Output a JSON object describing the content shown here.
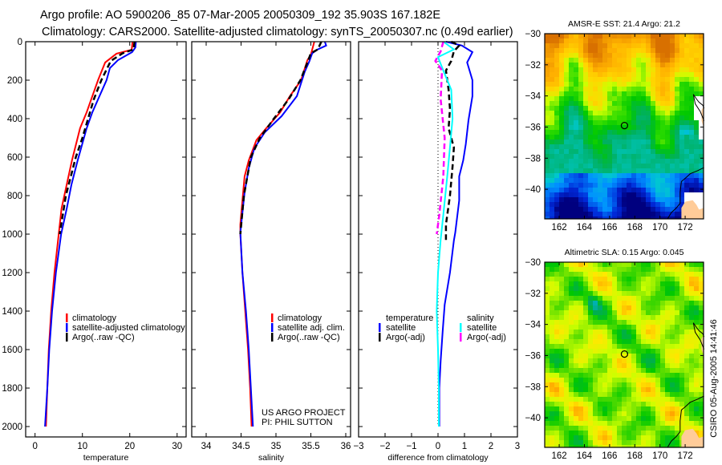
{
  "header": {
    "line1": "Argo profile: AO 5900206_85 07-Mar-2005 20050309_192 35.903S 167.182E",
    "line2": "Climatology: CARS2000. Satellite-adjusted climatology: synTS_20050307.nc (0.49d earlier)"
  },
  "credit": {
    "line1": "US ARGO PROJECT",
    "line2": "PI: PHIL SUTTON"
  },
  "timestamp": "CSIRO 05-Aug-2005 14:41:46",
  "colors": {
    "climatology": "#ff0000",
    "satellite": "#0000ff",
    "argo": "#000000",
    "salinity_satellite": "#00ffff",
    "salinity_argo": "#ff00ff",
    "land": "#ffcc99"
  },
  "chart_data": [
    {
      "type": "line",
      "title": "",
      "xlabel": "temperature",
      "ylabel": "",
      "xlim": [
        -1.98,
        31.9
      ],
      "ylim": [
        0,
        2054
      ],
      "xticks": [
        0,
        10,
        20,
        30
      ],
      "yticks": [
        0,
        200,
        400,
        600,
        800,
        1000,
        1200,
        1400,
        1600,
        1800,
        2000
      ],
      "show_ylabels": true,
      "zero_line": false,
      "legend": [
        {
          "header": null,
          "items": [
            {
              "label": "climatology",
              "color": "#ff0000"
            },
            {
              "label": "satellite-adjusted climatology",
              "color": "#0000ff"
            },
            {
              "label": "Argo(..raw -QC)",
              "color": "#000000"
            }
          ]
        }
      ],
      "series": [
        {
          "name": "climatology",
          "color": "#ff0000",
          "dash": false,
          "depth": [
            0,
            42,
            62,
            108,
            200,
            262,
            367,
            450,
            617,
            742,
            867,
            1000,
            1200,
            1400,
            1600,
            1800,
            2000
          ],
          "values": [
            20.6,
            20.4,
            17.2,
            14.8,
            13.3,
            12.4,
            10.9,
            9.5,
            7.8,
            6.7,
            5.6,
            5.0,
            4.1,
            3.4,
            2.9,
            2.6,
            2.3
          ]
        },
        {
          "name": "satellite-adjusted climatology",
          "color": "#0000ff",
          "dash": false,
          "depth": [
            0,
            30,
            54,
            96,
            137,
            200,
            283,
            367,
            450,
            617,
            742,
            867,
            1000,
            1200,
            1400,
            1600,
            1800,
            2000
          ],
          "values": [
            21.3,
            21.2,
            20.5,
            17.5,
            15.8,
            15.1,
            13.6,
            12.1,
            10.9,
            9.0,
            7.7,
            6.7,
            5.5,
            4.4,
            3.6,
            3.0,
            2.6,
            2.1
          ]
        },
        {
          "name": "Argo(..raw -QC)",
          "color": "#000000",
          "dash": true,
          "depth": [
            0,
            40,
            60,
            100,
            200,
            300,
            400,
            500,
            600,
            800,
            1000
          ],
          "values": [
            21.0,
            20.8,
            18.5,
            16.0,
            14.0,
            12.4,
            11.2,
            10.0,
            8.6,
            6.5,
            5.2
          ]
        }
      ]
    },
    {
      "type": "line",
      "title": "",
      "xlabel": "salinity",
      "ylabel": "",
      "xlim": [
        33.793,
        36.069
      ],
      "ylim": [
        0,
        2054
      ],
      "xticks": [
        34,
        34.5,
        35,
        35.5,
        36
      ],
      "yticks": [
        0,
        200,
        400,
        600,
        800,
        1000,
        1200,
        1400,
        1600,
        1800,
        2000
      ],
      "show_ylabels": false,
      "zero_line": false,
      "legend": [
        {
          "header": null,
          "items": [
            {
              "label": "climatology",
              "color": "#ff0000"
            },
            {
              "label": "satellite adj. clim.",
              "color": "#0000ff"
            },
            {
              "label": "Argo(..raw -QC)",
              "color": "#000000"
            }
          ]
        }
      ],
      "series": [
        {
          "name": "climatology",
          "color": "#ff0000",
          "dash": false,
          "depth": [
            0,
            67,
            96,
            200,
            283,
            367,
            450,
            512,
            617,
            700,
            825,
            950,
            1000,
            1200,
            1400,
            1600,
            1800,
            2000
          ],
          "values": [
            35.55,
            35.5,
            35.45,
            35.36,
            35.2,
            35.06,
            34.86,
            34.72,
            34.61,
            34.55,
            34.52,
            34.49,
            34.49,
            34.52,
            34.56,
            34.6,
            34.63,
            34.65
          ]
        },
        {
          "name": "satellite adj. clim.",
          "color": "#0000ff",
          "dash": false,
          "depth": [
            0,
            20,
            40,
            60,
            100,
            158,
            283,
            387,
            471,
            554,
            658,
            783,
            992,
            1200,
            1400,
            1600,
            1800,
            2000
          ],
          "values": [
            35.7,
            35.72,
            35.6,
            35.52,
            35.48,
            35.41,
            35.3,
            35.08,
            34.84,
            34.69,
            34.61,
            34.55,
            34.49,
            34.52,
            34.57,
            34.61,
            34.64,
            34.67
          ]
        },
        {
          "name": "Argo(..raw -QC)",
          "color": "#000000",
          "dash": true,
          "depth": [
            0,
            40,
            60,
            100,
            200,
            300,
            400,
            500,
            600,
            800,
            1000
          ],
          "values": [
            35.65,
            35.6,
            35.5,
            35.46,
            35.35,
            35.18,
            34.97,
            34.77,
            34.64,
            34.54,
            34.49
          ]
        }
      ]
    },
    {
      "type": "line",
      "title": "",
      "xlabel": "difference from climatology",
      "ylabel": "",
      "xlim": [
        -3,
        3
      ],
      "ylim": [
        0,
        2054
      ],
      "xticks": [
        -3,
        -2,
        -1,
        0,
        1,
        2,
        3
      ],
      "yticks": [
        0,
        200,
        400,
        600,
        800,
        1000,
        1200,
        1400,
        1600,
        1800,
        2000
      ],
      "show_ylabels": false,
      "zero_line": true,
      "legend": [
        {
          "header": "temperature",
          "items": [
            {
              "label": "satellite",
              "color": "#0000ff"
            },
            {
              "label": "Argo(-adj)",
              "color": "#000000"
            }
          ]
        },
        {
          "header": "salinity",
          "items": [
            {
              "label": "satellite",
              "color": "#00ffff"
            },
            {
              "label": "Argo(-adj)",
              "color": "#ff00ff"
            }
          ]
        }
      ],
      "series": [
        {
          "name": "temperature satellite",
          "color": "#0000ff",
          "dash": false,
          "depth": [
            0,
            20,
            54,
            108,
            200,
            283,
            408,
            533,
            617,
            700,
            825,
            992,
            1033,
            1200,
            1367,
            1500,
            1658,
            1800,
            2000
          ],
          "values": [
            0.3,
            0.9,
            1.3,
            1.1,
            1.3,
            1.3,
            1.15,
            1.05,
            0.95,
            0.8,
            0.8,
            0.65,
            0.6,
            0.45,
            0.25,
            0.18,
            0.1,
            0.05,
            0.05
          ]
        },
        {
          "name": "temperature Argo(-adj)",
          "color": "#000000",
          "dash": true,
          "depth": [
            0,
            20,
            50,
            100,
            150,
            250,
            350,
            450,
            550,
            650,
            800,
            950,
            1030
          ],
          "values": [
            0.5,
            0.8,
            0.6,
            0.5,
            0.3,
            0.4,
            0.45,
            0.4,
            0.6,
            0.55,
            0.45,
            0.3,
            0.3
          ]
        },
        {
          "name": "salinity satellite",
          "color": "#00ffff",
          "dash": false,
          "depth": [
            0,
            40,
            80,
            150,
            250,
            400,
            550,
            700,
            900,
            1030,
            1200,
            1400,
            1600,
            1800,
            2000
          ],
          "values": [
            0.2,
            0.6,
            0.0,
            0.2,
            0.5,
            0.55,
            0.45,
            0.35,
            0.2,
            0.1,
            0.0,
            -0.05,
            0.0,
            0.03,
            0.03
          ]
        },
        {
          "name": "salinity Argo(-adj)",
          "color": "#ff00ff",
          "dash": true,
          "depth": [
            0,
            50,
            100,
            150,
            300,
            500,
            700,
            900,
            1000
          ],
          "values": [
            0.2,
            0.1,
            -0.1,
            0.15,
            0.1,
            0.25,
            0.2,
            0.05,
            -0.05
          ]
        }
      ]
    }
  ],
  "maps": [
    {
      "title": "AMSR-E SST: 21.4 Argo: 21.2",
      "kind": "sst",
      "lon_lim": [
        160.85,
        173.46
      ],
      "lat_lim": [
        -41.9,
        -30
      ],
      "xticks": [
        162,
        164,
        166,
        168,
        170,
        172
      ],
      "yticks": [
        -30,
        -32,
        -34,
        -36,
        -38,
        -40
      ],
      "marker": {
        "lon": 167.182,
        "lat": -35.903
      }
    },
    {
      "title": "Altimetric SLA: 0.15 Argo: 0.045",
      "kind": "sla",
      "lon_lim": [
        160.85,
        173.46
      ],
      "lat_lim": [
        -41.9,
        -30
      ],
      "xticks": [
        162,
        164,
        166,
        168,
        170,
        172
      ],
      "yticks": [
        -30,
        -32,
        -34,
        -36,
        -38,
        -40
      ],
      "marker": {
        "lon": 167.182,
        "lat": -35.903
      }
    }
  ]
}
